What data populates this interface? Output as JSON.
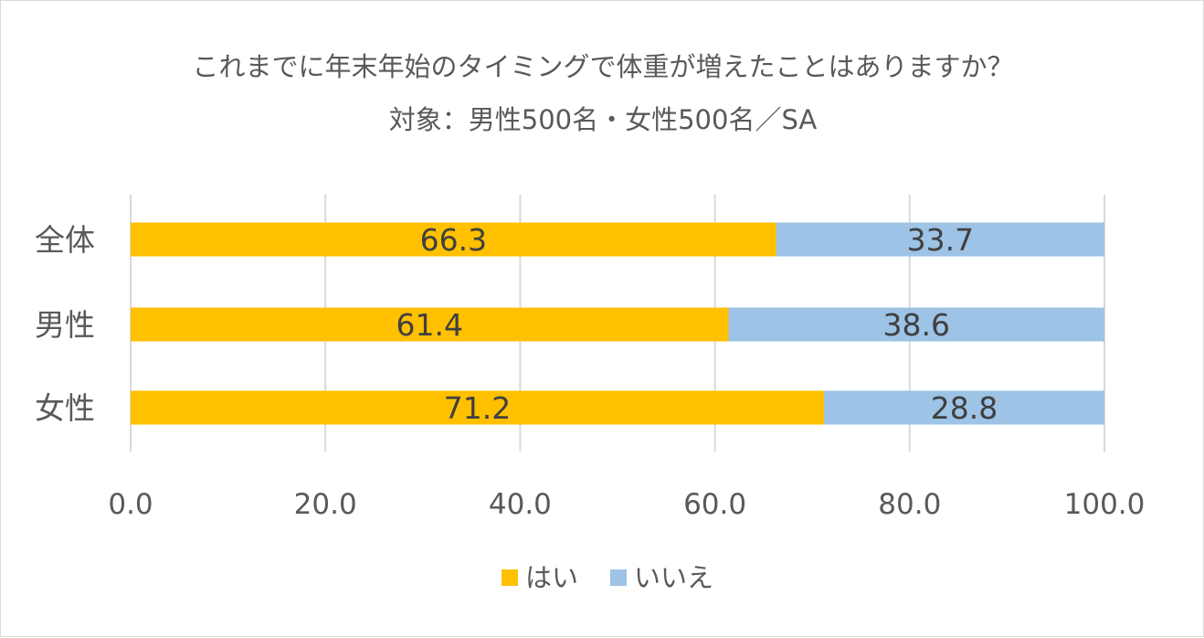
{
  "chart_data": {
    "type": "bar",
    "orientation": "horizontal",
    "stacked": true,
    "title": "これまでに年末年始のタイミングで体重が増えたことはありますか？",
    "subtitle": "対象：男性500名・女性500名／SA",
    "categories": [
      "全体",
      "男性",
      "女性"
    ],
    "series": [
      {
        "name": "はい",
        "color": "#FFC000",
        "values": [
          66.3,
          61.4,
          71.2
        ],
        "labels": [
          "66.3",
          "61.4",
          "71.2"
        ]
      },
      {
        "name": "いいえ",
        "color": "#9DC3E6",
        "values": [
          33.7,
          38.6,
          28.8
        ],
        "labels": [
          "33.7",
          "38.6",
          "28.8"
        ]
      }
    ],
    "xlim": [
      0,
      100
    ],
    "xticks": [
      "0.0",
      "20.0",
      "40.0",
      "60.0",
      "80.0",
      "100.0"
    ],
    "grid": true,
    "legend": "bottom"
  }
}
